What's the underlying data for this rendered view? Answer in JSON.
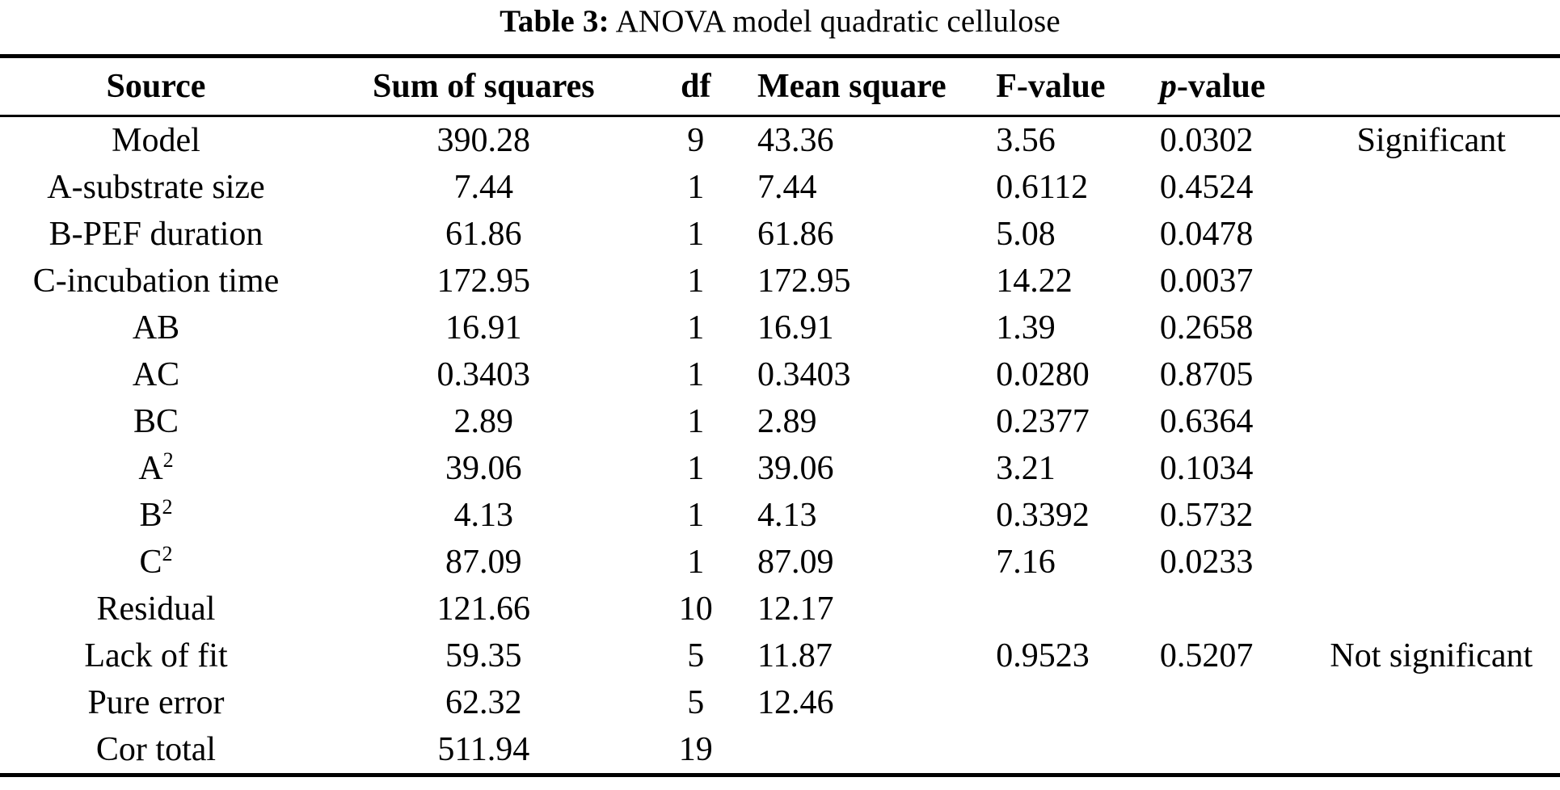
{
  "caption": {
    "label": "Table 3:",
    "text": " ANOVA model quadratic cellulose"
  },
  "table": {
    "headers": {
      "source": "Source",
      "sum_of_squares": "Sum of squares",
      "df": "df",
      "mean_square": "Mean square",
      "f_value": "F-value",
      "p_italic": "p",
      "p_rest": "-value",
      "note": ""
    },
    "rows": [
      {
        "source": "Model",
        "sum_of_squares": "390.28",
        "df": "9",
        "mean_square": "43.36",
        "f_value": "3.56",
        "p_value": "0.0302",
        "note": "Significant"
      },
      {
        "source": "A-substrate size",
        "sum_of_squares": "7.44",
        "df": "1",
        "mean_square": "7.44",
        "f_value": "0.6112",
        "p_value": "0.4524",
        "note": ""
      },
      {
        "source": "B-PEF duration",
        "sum_of_squares": "61.86",
        "df": "1",
        "mean_square": "61.86",
        "f_value": "5.08",
        "p_value": "0.0478",
        "note": ""
      },
      {
        "source": "C-incubation time",
        "sum_of_squares": "172.95",
        "df": "1",
        "mean_square": "172.95",
        "f_value": "14.22",
        "p_value": "0.0037",
        "note": ""
      },
      {
        "source": "AB",
        "sum_of_squares": "16.91",
        "df": "1",
        "mean_square": "16.91",
        "f_value": "1.39",
        "p_value": "0.2658",
        "note": ""
      },
      {
        "source": "AC",
        "sum_of_squares": "0.3403",
        "df": "1",
        "mean_square": "0.3403",
        "f_value": "0.0280",
        "p_value": "0.8705",
        "note": ""
      },
      {
        "source": "BC",
        "sum_of_squares": "2.89",
        "df": "1",
        "mean_square": "2.89",
        "f_value": "0.2377",
        "p_value": "0.6364",
        "note": ""
      },
      {
        "source": "A²",
        "sum_of_squares": "39.06",
        "df": "1",
        "mean_square": "39.06",
        "f_value": "3.21",
        "p_value": "0.1034",
        "note": ""
      },
      {
        "source": "B²",
        "sum_of_squares": "4.13",
        "df": "1",
        "mean_square": "4.13",
        "f_value": "0.3392",
        "p_value": "0.5732",
        "note": ""
      },
      {
        "source": "C²",
        "sum_of_squares": "87.09",
        "df": "1",
        "mean_square": "87.09",
        "f_value": "7.16",
        "p_value": "0.0233",
        "note": ""
      },
      {
        "source": "Residual",
        "sum_of_squares": "121.66",
        "df": "10",
        "mean_square": "12.17",
        "f_value": "",
        "p_value": "",
        "note": ""
      },
      {
        "source": "Lack of fit",
        "sum_of_squares": "59.35",
        "df": "5",
        "mean_square": "11.87",
        "f_value": "0.9523",
        "p_value": "0.5207",
        "note": "Not significant"
      },
      {
        "source": "Pure error",
        "sum_of_squares": "62.32",
        "df": "5",
        "mean_square": "12.46",
        "f_value": "",
        "p_value": "",
        "note": ""
      },
      {
        "source": "Cor total",
        "sum_of_squares": "511.94",
        "df": "19",
        "mean_square": "",
        "f_value": "",
        "p_value": "",
        "note": ""
      }
    ]
  }
}
